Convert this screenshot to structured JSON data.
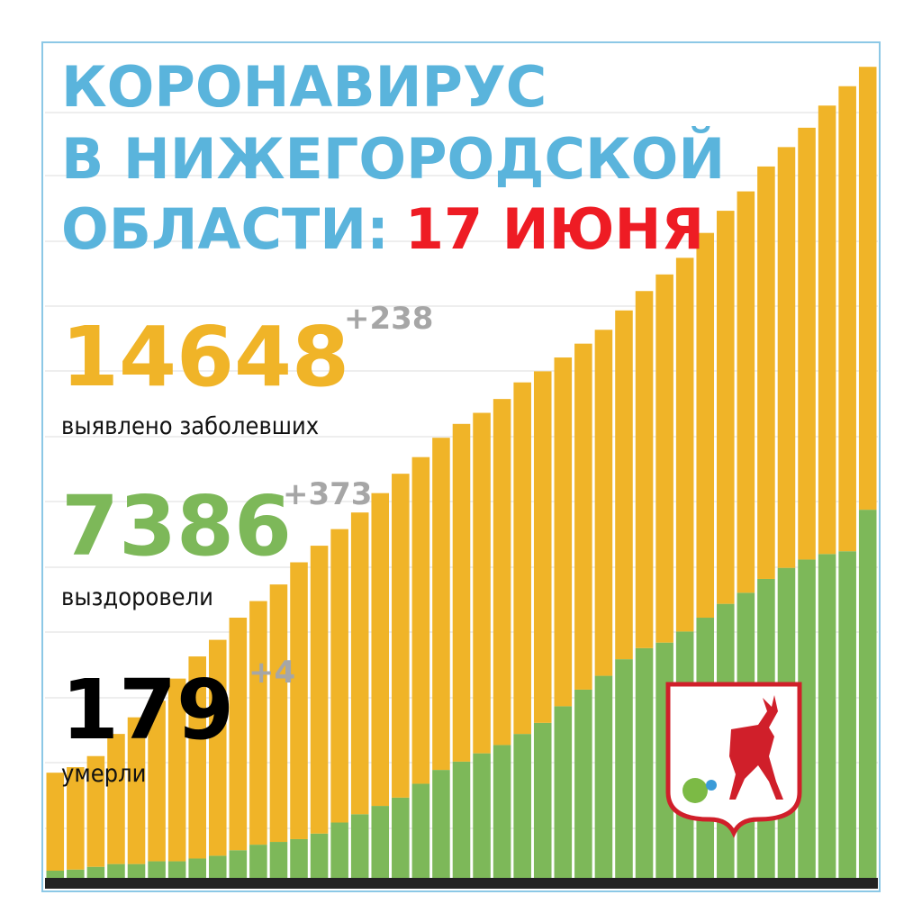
{
  "chart_data": {
    "type": "bar",
    "title": [
      "КОРОНАВИРУС",
      "В НИЖЕГОРОДСКОЙ",
      "ОБЛАСТИ:",
      "17 ИЮНЯ"
    ],
    "stats": [
      {
        "value": "14648",
        "delta": "+238",
        "label": "выявлено заболевших",
        "color": "#f0b428"
      },
      {
        "value": "7386",
        "delta": "+373",
        "label": "выздоровели",
        "color": "#7db859"
      },
      {
        "value": "179",
        "delta": "+4",
        "label": "умерли",
        "color": "#000000"
      }
    ],
    "categories": [
      null,
      null,
      null,
      null,
      null,
      null,
      null,
      null,
      null,
      null,
      null,
      null,
      null,
      null,
      null,
      null,
      null,
      null,
      null,
      null,
      null,
      null,
      null,
      null,
      null,
      null,
      null,
      null,
      null,
      null,
      null,
      null,
      null,
      null,
      null,
      null,
      null,
      null,
      null,
      null,
      null
    ],
    "series": [
      {
        "color": "#7db859",
        "values": [
          130,
          150,
          200,
          250,
          250,
          300,
          300,
          350,
          400,
          500,
          600,
          650,
          700,
          800,
          1000,
          1150,
          1300,
          1450,
          1700,
          1950,
          2100,
          2250,
          2400,
          2600,
          2800,
          3100,
          3400,
          3650,
          3950,
          4150,
          4250,
          4450,
          4700,
          4950,
          5150,
          5400,
          5600,
          5750,
          5850,
          5900,
          6650
        ]
      },
      {
        "color": "#f0b428",
        "values": [
          1770,
          1850,
          2000,
          2350,
          2650,
          2900,
          3300,
          3650,
          3900,
          4200,
          4400,
          4650,
          5000,
          5200,
          5300,
          5450,
          5650,
          5850,
          5900,
          6000,
          6100,
          6150,
          6250,
          6350,
          6350,
          6300,
          6250,
          6250,
          6300,
          6450,
          6650,
          6750,
          6950,
          7100,
          7250,
          7450,
          7600,
          7800,
          8100,
          8400,
          8000
        ]
      }
    ],
    "ylim": [
      0,
      14800
    ]
  }
}
